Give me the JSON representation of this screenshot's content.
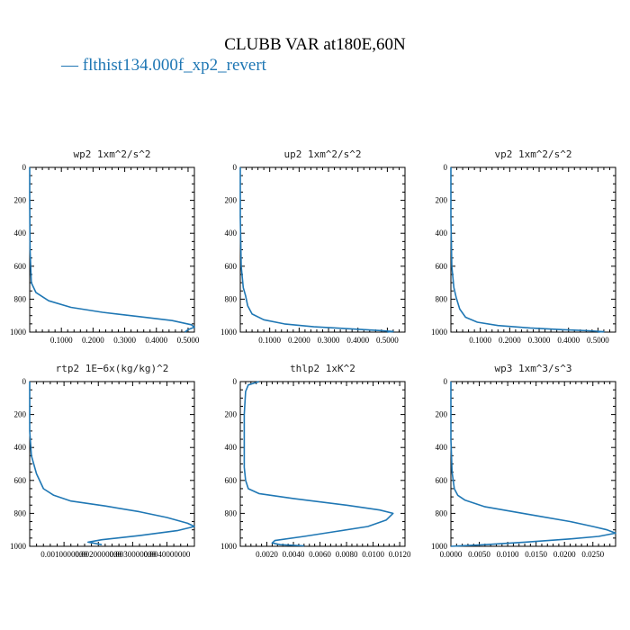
{
  "header": {
    "title": "CLUBB VAR at180E,60N",
    "legend_label": "— flthist134.000f_xp2_revert"
  },
  "colors": {
    "series": "#1f77b4",
    "legend_text": "#1f77b4"
  },
  "chart_data": [
    {
      "type": "line",
      "title": "wp2  1xm^2/s^2",
      "ylim": [
        1000,
        0
      ],
      "xlim": [
        0,
        0.52
      ],
      "x_ticks": [
        "0.1000",
        "0.2000",
        "0.3000",
        "0.4000",
        "0.5000"
      ],
      "x_tick_values": [
        0.1,
        0.2,
        0.3,
        0.4,
        0.5
      ],
      "y_ticks": [
        "0",
        "200",
        "400",
        "600",
        "800",
        "1000"
      ],
      "series": [
        {
          "x": [
            0.0,
            0.0,
            0.001,
            0.005,
            0.02,
            0.06,
            0.13,
            0.23,
            0.34,
            0.45,
            0.51,
            0.52,
            0.5,
            0.49
          ],
          "y": [
            0,
            200,
            500,
            700,
            760,
            810,
            850,
            880,
            905,
            930,
            955,
            970,
            985,
            1000
          ]
        }
      ]
    },
    {
      "type": "line",
      "title": "up2  1xm^2/s^2",
      "ylim": [
        1000,
        0
      ],
      "xlim": [
        0,
        0.56
      ],
      "x_ticks": [
        "0.1000",
        "0.2000",
        "0.3000",
        "0.4000",
        "0.5000"
      ],
      "x_tick_values": [
        0.1,
        0.2,
        0.3,
        0.4,
        0.5
      ],
      "y_ticks": [
        "0",
        "200",
        "400",
        "600",
        "800",
        "1000"
      ],
      "series": [
        {
          "x": [
            0.0,
            0.0,
            0.003,
            0.01,
            0.018,
            0.025,
            0.04,
            0.08,
            0.15,
            0.25,
            0.37,
            0.47,
            0.52,
            0.5
          ],
          "y": [
            0,
            300,
            600,
            730,
            780,
            840,
            890,
            925,
            950,
            968,
            980,
            990,
            996,
            1000
          ]
        }
      ]
    },
    {
      "type": "line",
      "title": "vp2  1xm^2/s^2",
      "ylim": [
        1000,
        0
      ],
      "xlim": [
        0,
        0.56
      ],
      "x_ticks": [
        "0.1000",
        "0.2000",
        "0.3000",
        "0.4000",
        "0.5000"
      ],
      "x_tick_values": [
        0.1,
        0.2,
        0.3,
        0.4,
        0.5
      ],
      "y_ticks": [
        "0",
        "200",
        "400",
        "600",
        "800",
        "1000"
      ],
      "series": [
        {
          "x": [
            0.0,
            0.0,
            0.003,
            0.01,
            0.018,
            0.03,
            0.05,
            0.09,
            0.16,
            0.27,
            0.38,
            0.47,
            0.52,
            0.5
          ],
          "y": [
            0,
            300,
            600,
            730,
            790,
            860,
            910,
            940,
            960,
            975,
            985,
            992,
            997,
            1000
          ]
        }
      ]
    },
    {
      "type": "line",
      "title": "rtp2  1E−6x(kg/kg)^2",
      "ylim": [
        1000,
        0
      ],
      "xlim": [
        0,
        4.8e-06
      ],
      "x_ticks": [
        "0.0010000000",
        "0.0020000000",
        "0.0030000000",
        "0.0040000000"
      ],
      "x_tick_values": [
        1e-06,
        2e-06,
        3e-06,
        4e-06
      ],
      "y_ticks": [
        "0",
        "200",
        "400",
        "600",
        "800",
        "1000"
      ],
      "series": [
        {
          "x": [
            0.0,
            0.0,
            5e-08,
            2e-07,
            4e-07,
            7e-07,
            1.2e-06,
            2.2e-06,
            3.2e-06,
            4e-06,
            4.6e-06,
            4.8e-06,
            4.3e-06,
            3.2e-06,
            2.1e-06,
            1.7e-06,
            2.1e-06
          ],
          "y": [
            0,
            300,
            450,
            560,
            650,
            690,
            725,
            755,
            790,
            825,
            860,
            880,
            905,
            935,
            960,
            975,
            990
          ]
        }
      ]
    },
    {
      "type": "line",
      "title": "thlp2  1xK^2",
      "ylim": [
        1000,
        0
      ],
      "xlim": [
        0,
        0.0124
      ],
      "x_ticks": [
        "0.0020",
        "0.0040",
        "0.0060",
        "0.0080",
        "0.0100",
        "0.0120"
      ],
      "x_tick_values": [
        0.002,
        0.004,
        0.006,
        0.008,
        0.01,
        0.012
      ],
      "y_ticks": [
        "0",
        "200",
        "400",
        "600",
        "800",
        "1000"
      ],
      "series": [
        {
          "x": [
            0.0014,
            0.0006,
            0.0004,
            0.0003,
            0.0003,
            0.0003,
            0.0004,
            0.0006,
            0.0014,
            0.004,
            0.008,
            0.0105,
            0.0115,
            0.011,
            0.0096,
            0.0072,
            0.0048,
            0.0026,
            0.0024,
            0.003,
            0.0048
          ],
          "y": [
            0,
            20,
            60,
            200,
            400,
            520,
            600,
            650,
            680,
            710,
            750,
            780,
            800,
            840,
            880,
            910,
            940,
            965,
            980,
            990,
            997
          ]
        }
      ]
    },
    {
      "type": "line",
      "title": "wp3  1xm^3/s^3",
      "ylim": [
        1000,
        0
      ],
      "xlim": [
        0,
        0.029
      ],
      "x_ticks": [
        "0.0000",
        "0.0050",
        "0.0100",
        "0.0150",
        "0.0200",
        "0.0250"
      ],
      "x_tick_values": [
        0.0,
        0.005,
        0.01,
        0.015,
        0.02,
        0.025
      ],
      "y_ticks": [
        "0",
        "200",
        "400",
        "600",
        "800",
        "1000"
      ],
      "series": [
        {
          "x": [
            0.0,
            0.0,
            0.0002,
            0.0006,
            0.0012,
            0.0025,
            0.006,
            0.011,
            0.016,
            0.021,
            0.025,
            0.0275,
            0.029,
            0.026,
            0.021,
            0.013,
            0.006,
            0.0
          ],
          "y": [
            0,
            350,
            550,
            650,
            690,
            720,
            760,
            790,
            820,
            850,
            880,
            900,
            920,
            940,
            955,
            975,
            990,
            1000
          ]
        }
      ]
    }
  ]
}
